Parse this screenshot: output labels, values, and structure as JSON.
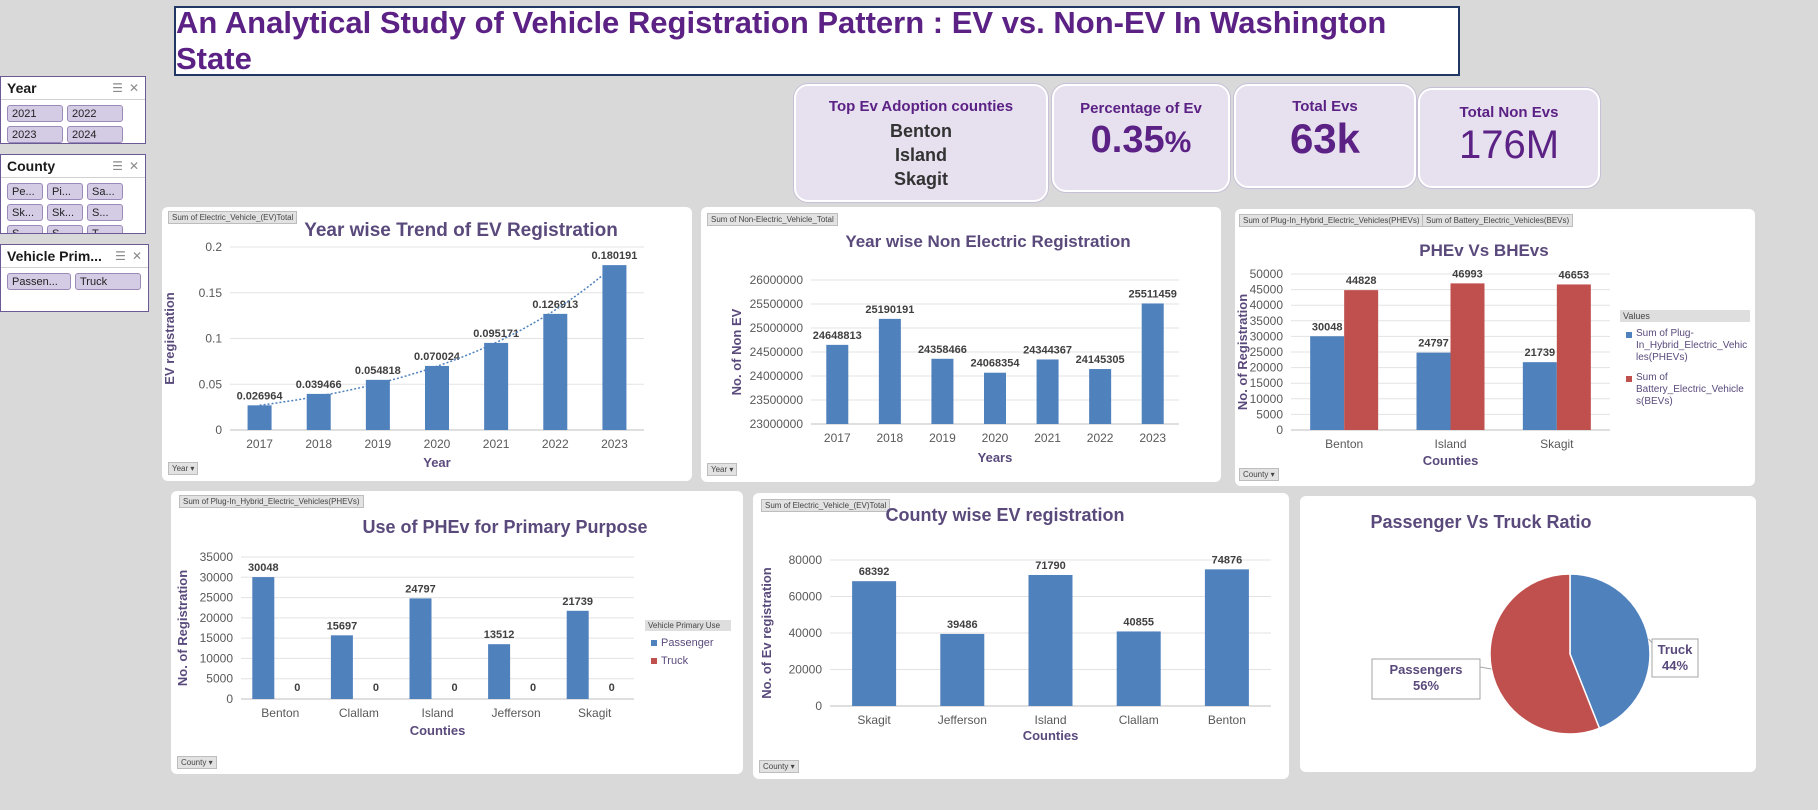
{
  "title": "An Analytical Study of Vehicle Registration Pattern : EV vs. Non-EV In  Washington State",
  "slicers": {
    "year": {
      "label": "Year",
      "items": [
        "2021",
        "2022",
        "2023",
        "2024"
      ]
    },
    "county": {
      "label": "County",
      "items": [
        "Pe...",
        "Pi...",
        "Sa...",
        "Sk...",
        "Sk...",
        "S...",
        "S...",
        "S...",
        "T..."
      ]
    },
    "use": {
      "label": "Vehicle Prim...",
      "items": [
        "Passen...",
        "Truck"
      ]
    }
  },
  "kpis": {
    "top_counties": {
      "label": "Top Ev Adoption counties",
      "values": [
        "Benton",
        "Island",
        "Skagit"
      ]
    },
    "pct_ev": {
      "label": "Percentage of Ev",
      "value": "0.35",
      "unit": "%"
    },
    "total_evs": {
      "label": "Total  Evs",
      "value": "63k"
    },
    "total_non_evs": {
      "label": "Total  Non Evs",
      "value": "176M"
    }
  },
  "colors": {
    "blue": "#4f81bd",
    "red": "#c0504d",
    "title": "#5b2184"
  },
  "chart_data": [
    {
      "id": "ev_trend",
      "type": "bar",
      "field_tag": "Sum of Electric_Vehicle_(EV)Total",
      "filter_tag": "Year",
      "title": "Year wise Trend of EV Registration",
      "xlabel": "Year",
      "ylabel": "EV registration",
      "categories": [
        "2017",
        "2018",
        "2019",
        "2020",
        "2021",
        "2022",
        "2023"
      ],
      "values": [
        0.026964,
        0.039466,
        0.054818,
        0.070024,
        0.095171,
        0.126913,
        0.180191
      ],
      "labels": [
        "0.026964",
        "0.039466",
        "0.054818",
        "0.070024",
        "0.095171",
        "0.126913",
        "0.180191"
      ],
      "yticks": [
        "0",
        "0.05",
        "0.1",
        "0.15",
        "0.2"
      ],
      "ylim": [
        0,
        0.2
      ],
      "trendline": "exponential (dotted)"
    },
    {
      "id": "non_ev",
      "type": "bar",
      "field_tag": "Sum of Non-Electric_Vehicle_Total",
      "filter_tag": "Year",
      "title": "Year wise Non Electric Registration",
      "xlabel": "Years",
      "ylabel": "No. of Non EV",
      "categories": [
        "2017",
        "2018",
        "2019",
        "2020",
        "2021",
        "2022",
        "2023"
      ],
      "values": [
        24648813,
        25190191,
        24358466,
        24068354,
        24344367,
        24145305,
        25511459
      ],
      "labels": [
        "24648813",
        "25190191",
        "24358466",
        "24068354",
        "24344367",
        "24145305",
        "25511459"
      ],
      "yticks": [
        "23000000",
        "23500000",
        "24000000",
        "24500000",
        "25000000",
        "25500000",
        "26000000"
      ],
      "ylim": [
        23000000,
        26000000
      ]
    },
    {
      "id": "phev_bev",
      "type": "bar",
      "field_tags": [
        "Sum of Plug-In_Hybrid_Electric_Vehicles(PHEVs)",
        "Sum of Battery_Electric_Vehicles(BEVs)"
      ],
      "filter_tag": "County",
      "title": "PHEv Vs BHEvs",
      "xlabel": "Counties",
      "ylabel": "No. of Registration",
      "categories": [
        "Benton",
        "Island",
        "Skagit"
      ],
      "series": [
        {
          "name": "Sum of Plug-In_Hybrid_Electric_Vehicles(PHEVs)",
          "values": [
            30048,
            24797,
            21739
          ],
          "labels": [
            "30048",
            "24797",
            "21739"
          ]
        },
        {
          "name": "Sum of Battery_Electric_Vehicles(BEVs)",
          "values": [
            44828,
            46993,
            46653
          ],
          "labels": [
            "44828",
            "46993",
            "46653"
          ]
        }
      ],
      "legend_title": "Values",
      "legend_lines": [
        [
          "Sum of Plug-",
          "In_Hybrid_Electric_Vehic",
          "les(PHEVs)"
        ],
        [
          "Sum of",
          "Battery_Electric_Vehicle",
          "s(BEVs)"
        ]
      ],
      "yticks": [
        "0",
        "5000",
        "10000",
        "15000",
        "20000",
        "25000",
        "30000",
        "35000",
        "40000",
        "45000",
        "50000"
      ],
      "ylim": [
        0,
        50000
      ]
    },
    {
      "id": "phev_use",
      "type": "bar",
      "field_tag": "Sum of Plug-In_Hybrid_Electric_Vehicles(PHEVs)",
      "filter_tag": "County",
      "title": "Use of PHEv for Primary Purpose",
      "xlabel": "Counties",
      "ylabel": "No. of Registration",
      "categories": [
        "Benton",
        "Clallam",
        "Island",
        "Jefferson",
        "Skagit"
      ],
      "series": [
        {
          "name": "Passenger",
          "values": [
            30048,
            15697,
            24797,
            13512,
            21739
          ],
          "labels": [
            "30048",
            "15697",
            "24797",
            "13512",
            "21739"
          ]
        },
        {
          "name": "Truck",
          "values": [
            0,
            0,
            0,
            0,
            0
          ],
          "labels": [
            "0",
            "0",
            "0",
            "0",
            "0"
          ]
        }
      ],
      "legend_title": "Vehicle Primary Use",
      "yticks": [
        "0",
        "5000",
        "10000",
        "15000",
        "20000",
        "25000",
        "30000",
        "35000"
      ],
      "ylim": [
        0,
        35000
      ]
    },
    {
      "id": "county_ev",
      "type": "bar",
      "field_tag": "Sum of Electric_Vehicle_(EV)Total",
      "filter_tag": "County",
      "title": "County wise EV registration",
      "xlabel": "Counties",
      "ylabel": "No. of Ev registration",
      "categories": [
        "Skagit",
        "Jefferson",
        "Island",
        "Clallam",
        "Benton"
      ],
      "values": [
        68392,
        39486,
        71790,
        40855,
        74876
      ],
      "labels": [
        "68392",
        "39486",
        "71790",
        "40855",
        "74876"
      ],
      "yticks": [
        "0",
        "20000",
        "40000",
        "60000",
        "80000"
      ],
      "ylim": [
        0,
        80000
      ]
    },
    {
      "id": "ratio",
      "type": "pie",
      "title": "Passenger Vs Truck  Ratio",
      "slices": [
        {
          "name": "Truck",
          "value": 44,
          "label": "44%"
        },
        {
          "name": "Passengers",
          "value": 56,
          "label": "56%"
        }
      ]
    }
  ]
}
